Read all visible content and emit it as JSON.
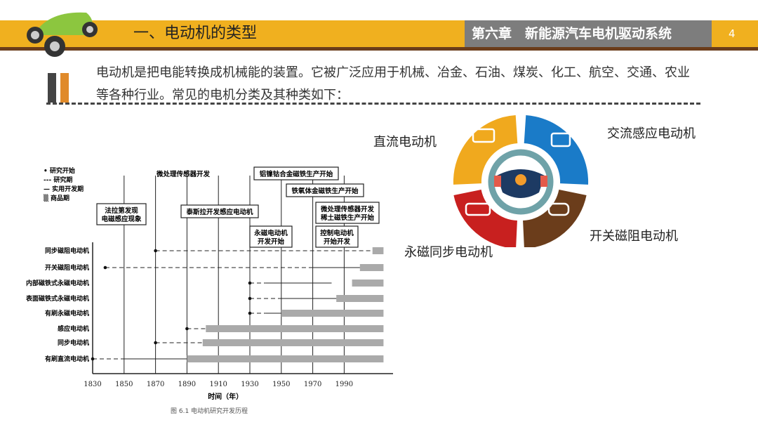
{
  "header": {
    "title": "一、电动机的类型",
    "chapter": "第六章　新能源汽车电机驱动系统",
    "page_number": "4"
  },
  "intro": "电动机是把电能转换成机械能的装置。它被广泛应用于机械、冶金、石油、煤炭、化工、航空、交通、农业等各种行业。常见的电机分类及其种类如下：",
  "wheel": {
    "labels": [
      "直流电动机",
      "交流感应电动机",
      "开关磁阻电动机",
      "永磁同步电动机"
    ],
    "colors": [
      "#f0a91e",
      "#1a7bc8",
      "#6b3d1b",
      "#c8201f"
    ],
    "center_icon": "steering-wheel-icon"
  },
  "figure_caption": "图 6.1 电动机研究开发历程",
  "chart_data": {
    "type": "timeline",
    "xlabel": "时间（年）",
    "xticks": [
      1830,
      1850,
      1870,
      1890,
      1910,
      1930,
      1950,
      1970,
      1990
    ],
    "legend": [
      "研究开始",
      "研究期",
      "实用开发期",
      "商品期"
    ],
    "annotations": [
      "法拉第发现\n电磁感应现象",
      "微处理传感器开发",
      "泰斯拉开发感应电动机",
      "铝镍钴合金磁铁生产开始",
      "铁氧体金磁铁生产开始",
      "永磁电动机\n开发开始",
      "微处理传感器开发\n稀土磁铁生产开始",
      "控制电动机\n开始开发"
    ],
    "rows": [
      {
        "name": "同步磁阻电动机",
        "start": 1870,
        "research": [
          1870,
          2008
        ],
        "practical": null,
        "commercial": [
          2008,
          2015
        ]
      },
      {
        "name": "开关磁阻电动机",
        "start": 1838,
        "research": [
          1838,
          1970
        ],
        "practical": [
          1970,
          2000
        ],
        "commercial": [
          2000,
          2015
        ]
      },
      {
        "name": "内部磁铁式永磁电动机",
        "start": 1930,
        "research": [
          1930,
          1940
        ],
        "practical": [
          1940,
          1982
        ],
        "commercial": [
          1995,
          2015
        ]
      },
      {
        "name": "表面磁铁式永磁电动机",
        "start": 1930,
        "research": [
          1930,
          1950
        ],
        "practical": [
          1950,
          1985
        ],
        "commercial": [
          1985,
          2015
        ]
      },
      {
        "name": "有刷永磁电动机",
        "start": 1930,
        "research": [
          1930,
          1940
        ],
        "practical": [
          1940,
          1950
        ],
        "commercial": [
          1950,
          2015
        ]
      },
      {
        "name": "感应电动机",
        "start": 1890,
        "research": [
          1890,
          1902
        ],
        "practical": null,
        "commercial": [
          1902,
          2015
        ]
      },
      {
        "name": "同步电动机",
        "start": 1870,
        "research": [
          1870,
          1900
        ],
        "practical": null,
        "commercial": [
          1900,
          2015
        ]
      },
      {
        "name": "有刷直流电动机",
        "start": 1830,
        "research": [
          1830,
          1850
        ],
        "practical": [
          1850,
          1890
        ],
        "commercial": [
          1890,
          2015
        ]
      }
    ]
  }
}
